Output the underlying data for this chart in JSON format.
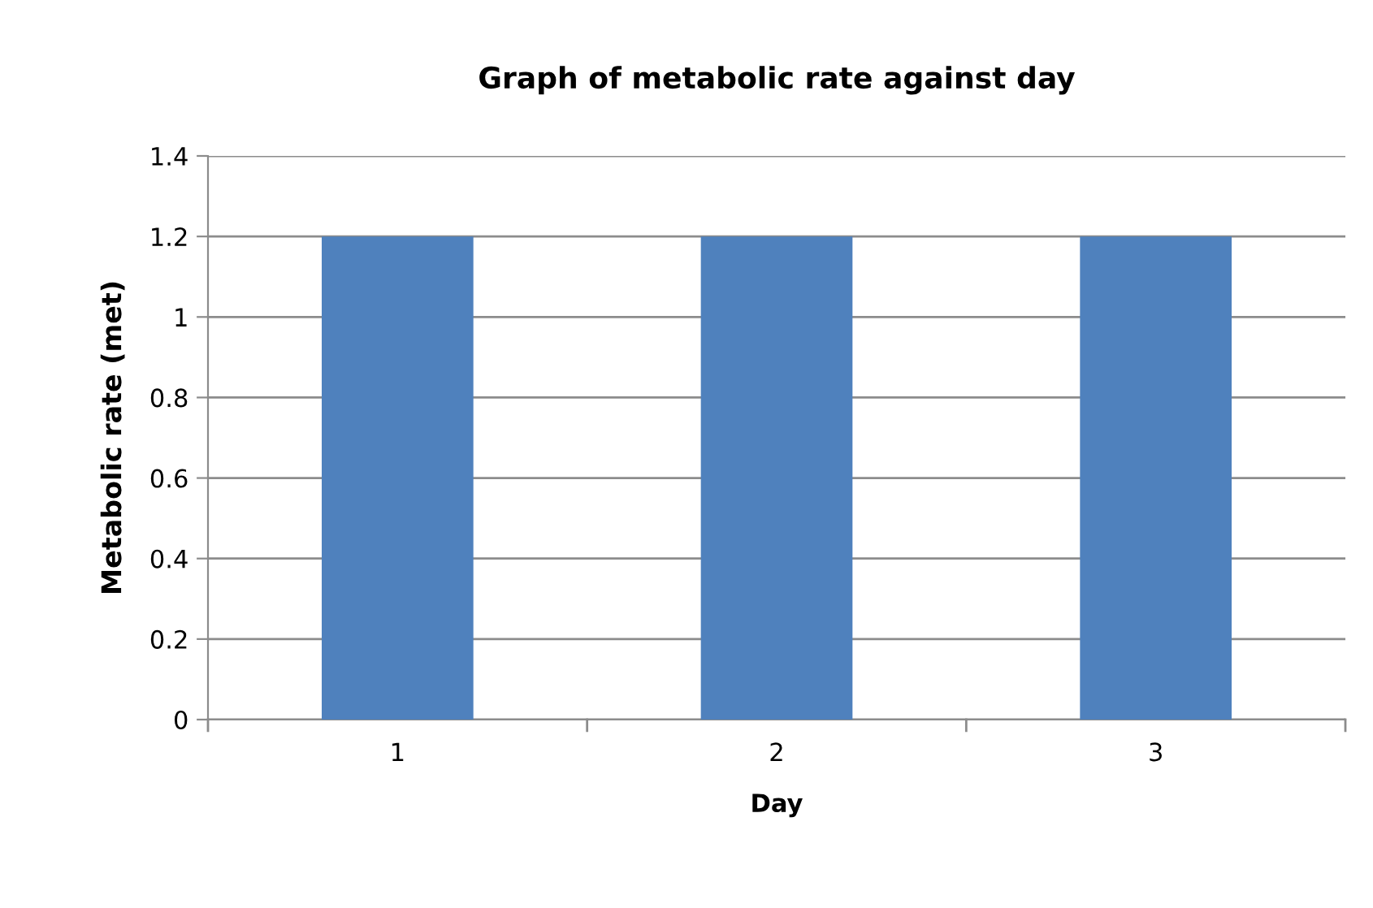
{
  "chart_data": {
    "type": "bar",
    "title": "Graph of metabolic rate against day",
    "xlabel": "Day",
    "ylabel": "Metabolic rate (met)",
    "categories": [
      "1",
      "2",
      "3"
    ],
    "values": [
      1.2,
      1.2,
      1.2
    ],
    "color": "#4f81bd",
    "ylim": [
      0,
      1.4
    ],
    "yticks": [
      {
        "value": 0,
        "label": "0"
      },
      0.2,
      0.4,
      0.6,
      0.8,
      {
        "value": 1,
        "label": "1"
      },
      1.2,
      1.4
    ],
    "grid": "y",
    "legend": false
  }
}
